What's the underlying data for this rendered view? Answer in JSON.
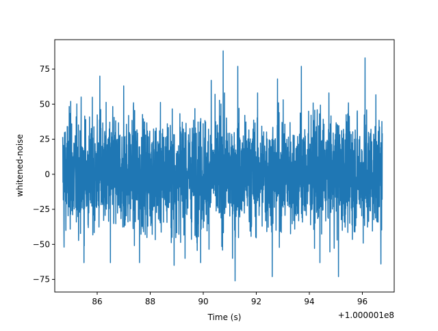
{
  "chart_data": {
    "type": "line",
    "xlabel": "Time (s)",
    "ylabel": "whitened-noise",
    "x_offset_label": "+1.000001e8",
    "xlim": [
      84.4,
      97.2
    ],
    "ylim": [
      -84,
      96
    ],
    "x_ticks": [
      86,
      88,
      90,
      92,
      94,
      96
    ],
    "y_ticks": [
      -75,
      -50,
      -25,
      0,
      25,
      50,
      75
    ],
    "grid": false,
    "series_color": "#1f77b4",
    "series": [
      {
        "x_start": 84.7,
        "x_end": 96.75,
        "notes_visible": "dense whitened noise trace, values mostly within about -50..50",
        "peaks": [
          {
            "x": 84.75,
            "y": 54
          },
          {
            "x": 85.0,
            "y": 52
          },
          {
            "x": 85.5,
            "y": 71
          },
          {
            "x": 86.1,
            "y": 70
          },
          {
            "x": 87.0,
            "y": 63
          },
          {
            "x": 87.6,
            "y": 60
          },
          {
            "x": 90.3,
            "y": 67
          },
          {
            "x": 90.75,
            "y": 88
          },
          {
            "x": 91.3,
            "y": 77
          },
          {
            "x": 92.8,
            "y": 68
          },
          {
            "x": 93.7,
            "y": 77
          },
          {
            "x": 96.1,
            "y": 83
          }
        ],
        "troughs": [
          {
            "x": 84.75,
            "y": -52
          },
          {
            "x": 85.5,
            "y": -63
          },
          {
            "x": 86.5,
            "y": -63
          },
          {
            "x": 87.6,
            "y": -63
          },
          {
            "x": 88.9,
            "y": -65
          },
          {
            "x": 89.9,
            "y": -63
          },
          {
            "x": 91.2,
            "y": -76
          },
          {
            "x": 92.6,
            "y": -73
          },
          {
            "x": 94.4,
            "y": -63
          },
          {
            "x": 95.1,
            "y": -73
          },
          {
            "x": 96.7,
            "y": -64
          }
        ]
      }
    ]
  }
}
